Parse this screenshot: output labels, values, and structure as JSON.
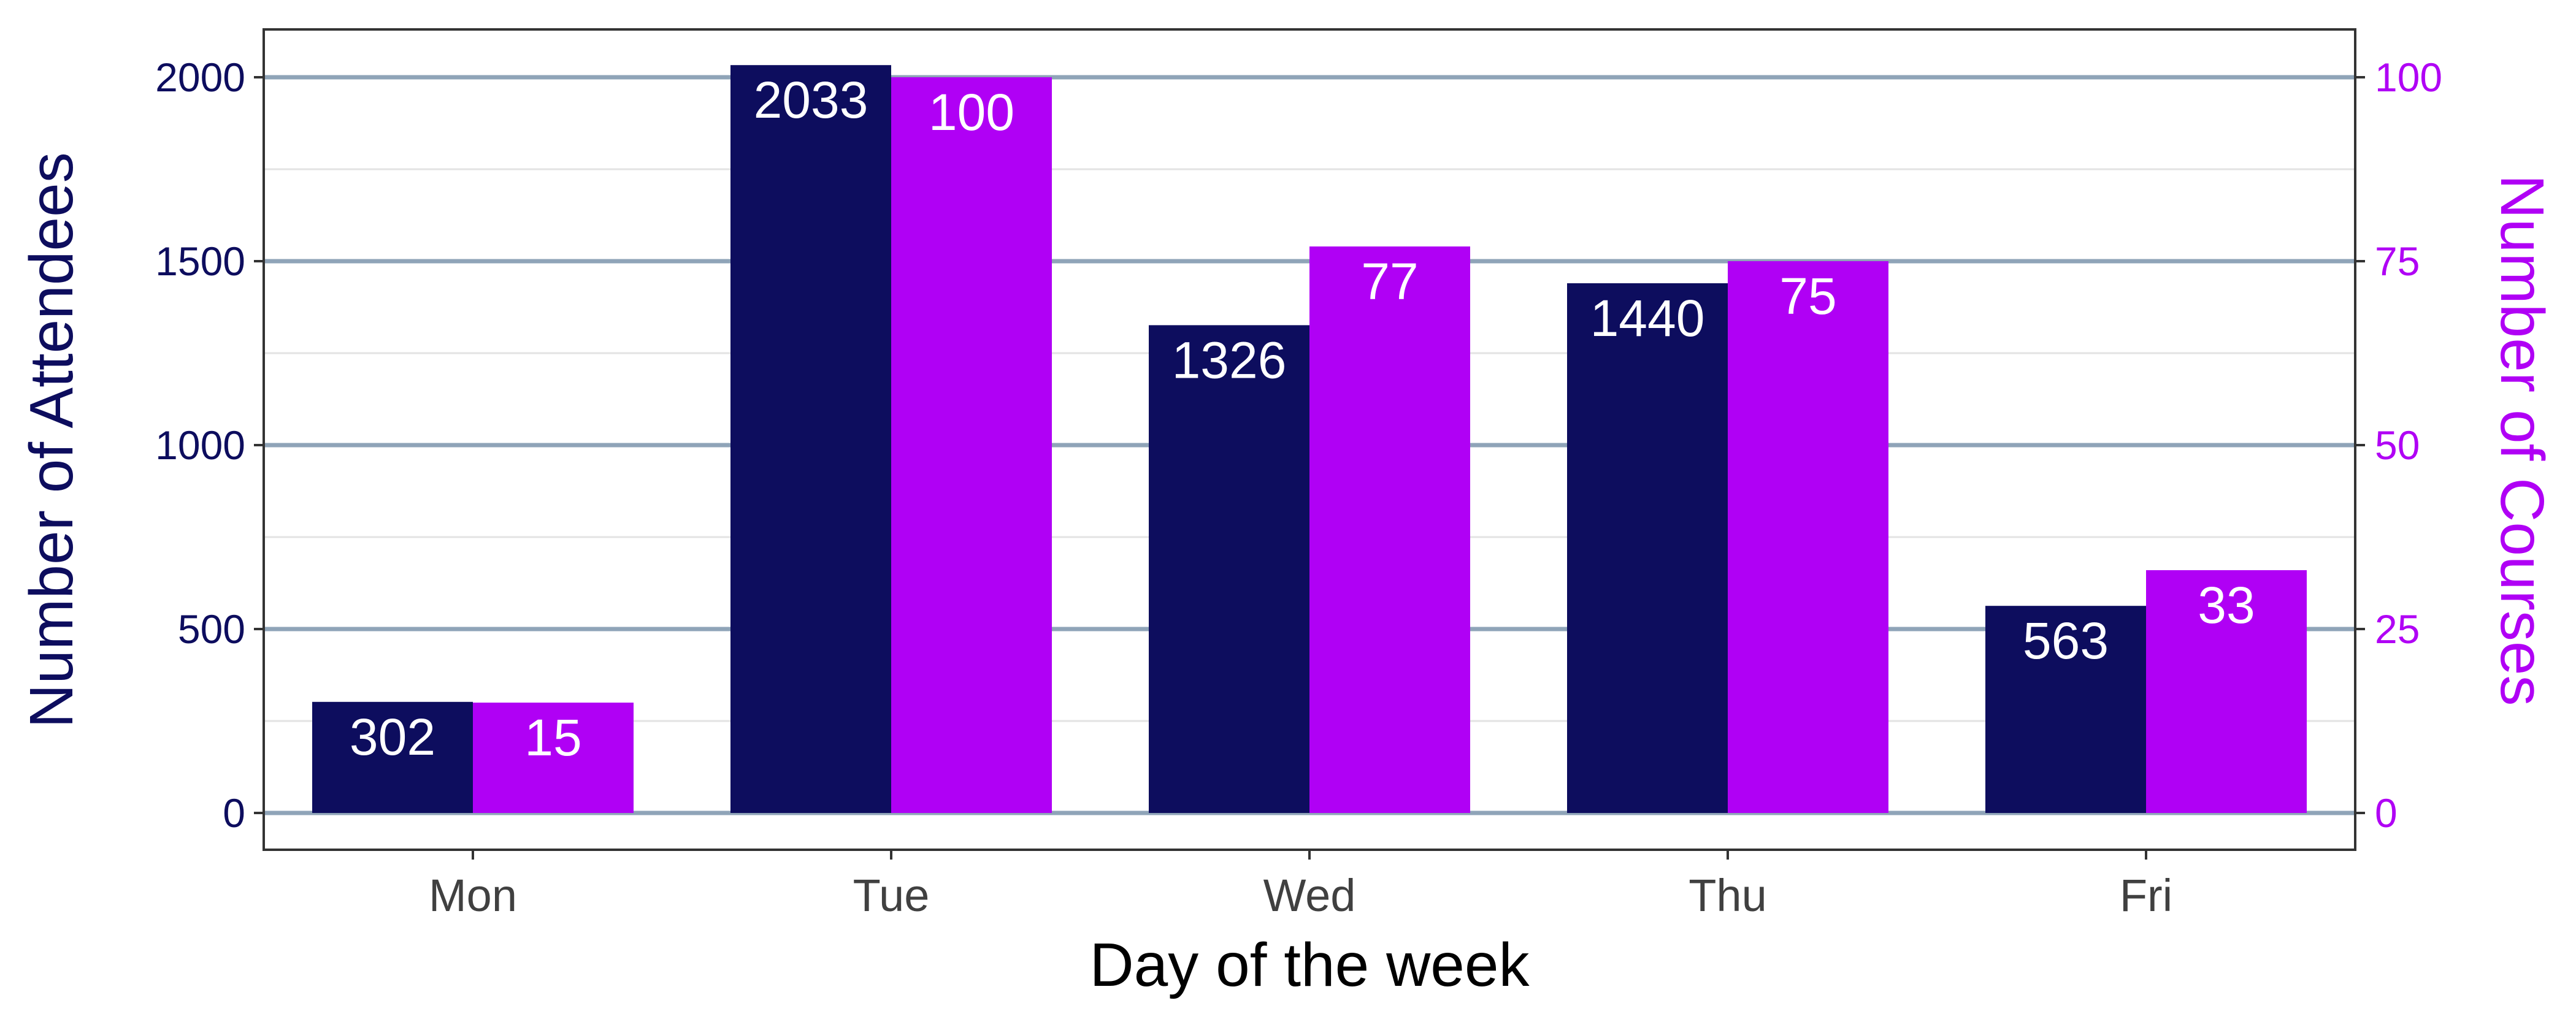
{
  "chart_data": {
    "type": "bar",
    "title": "",
    "xlabel": "Day of the week",
    "ylabel_left": "Number of Attendees",
    "ylabel_right": "Number of Courses",
    "categories": [
      "Mon",
      "Tue",
      "Wed",
      "Thu",
      "Fri"
    ],
    "series": [
      {
        "name": "Number of Attendees",
        "axis": "left",
        "color": "#0d0d5e",
        "values": [
          302,
          2033,
          1326,
          1440,
          563
        ]
      },
      {
        "name": "Number of Courses",
        "axis": "right",
        "color": "#b000f5",
        "values": [
          15,
          100,
          77,
          75,
          33
        ]
      }
    ],
    "ylim_left": [
      -100,
      2130
    ],
    "ylim_right": [
      -5,
      106.5
    ],
    "yticks_left": [
      0,
      500,
      1000,
      1500,
      2000
    ],
    "yticks_right": [
      0,
      25,
      50,
      75,
      100
    ],
    "grid": true,
    "legend": "none",
    "colors": {
      "attendees": "#0d0d5e",
      "courses": "#b000f5",
      "grid_major": "#8fa4b8",
      "grid_minor": "#e3e3e3",
      "panel_border": "#333333"
    }
  }
}
